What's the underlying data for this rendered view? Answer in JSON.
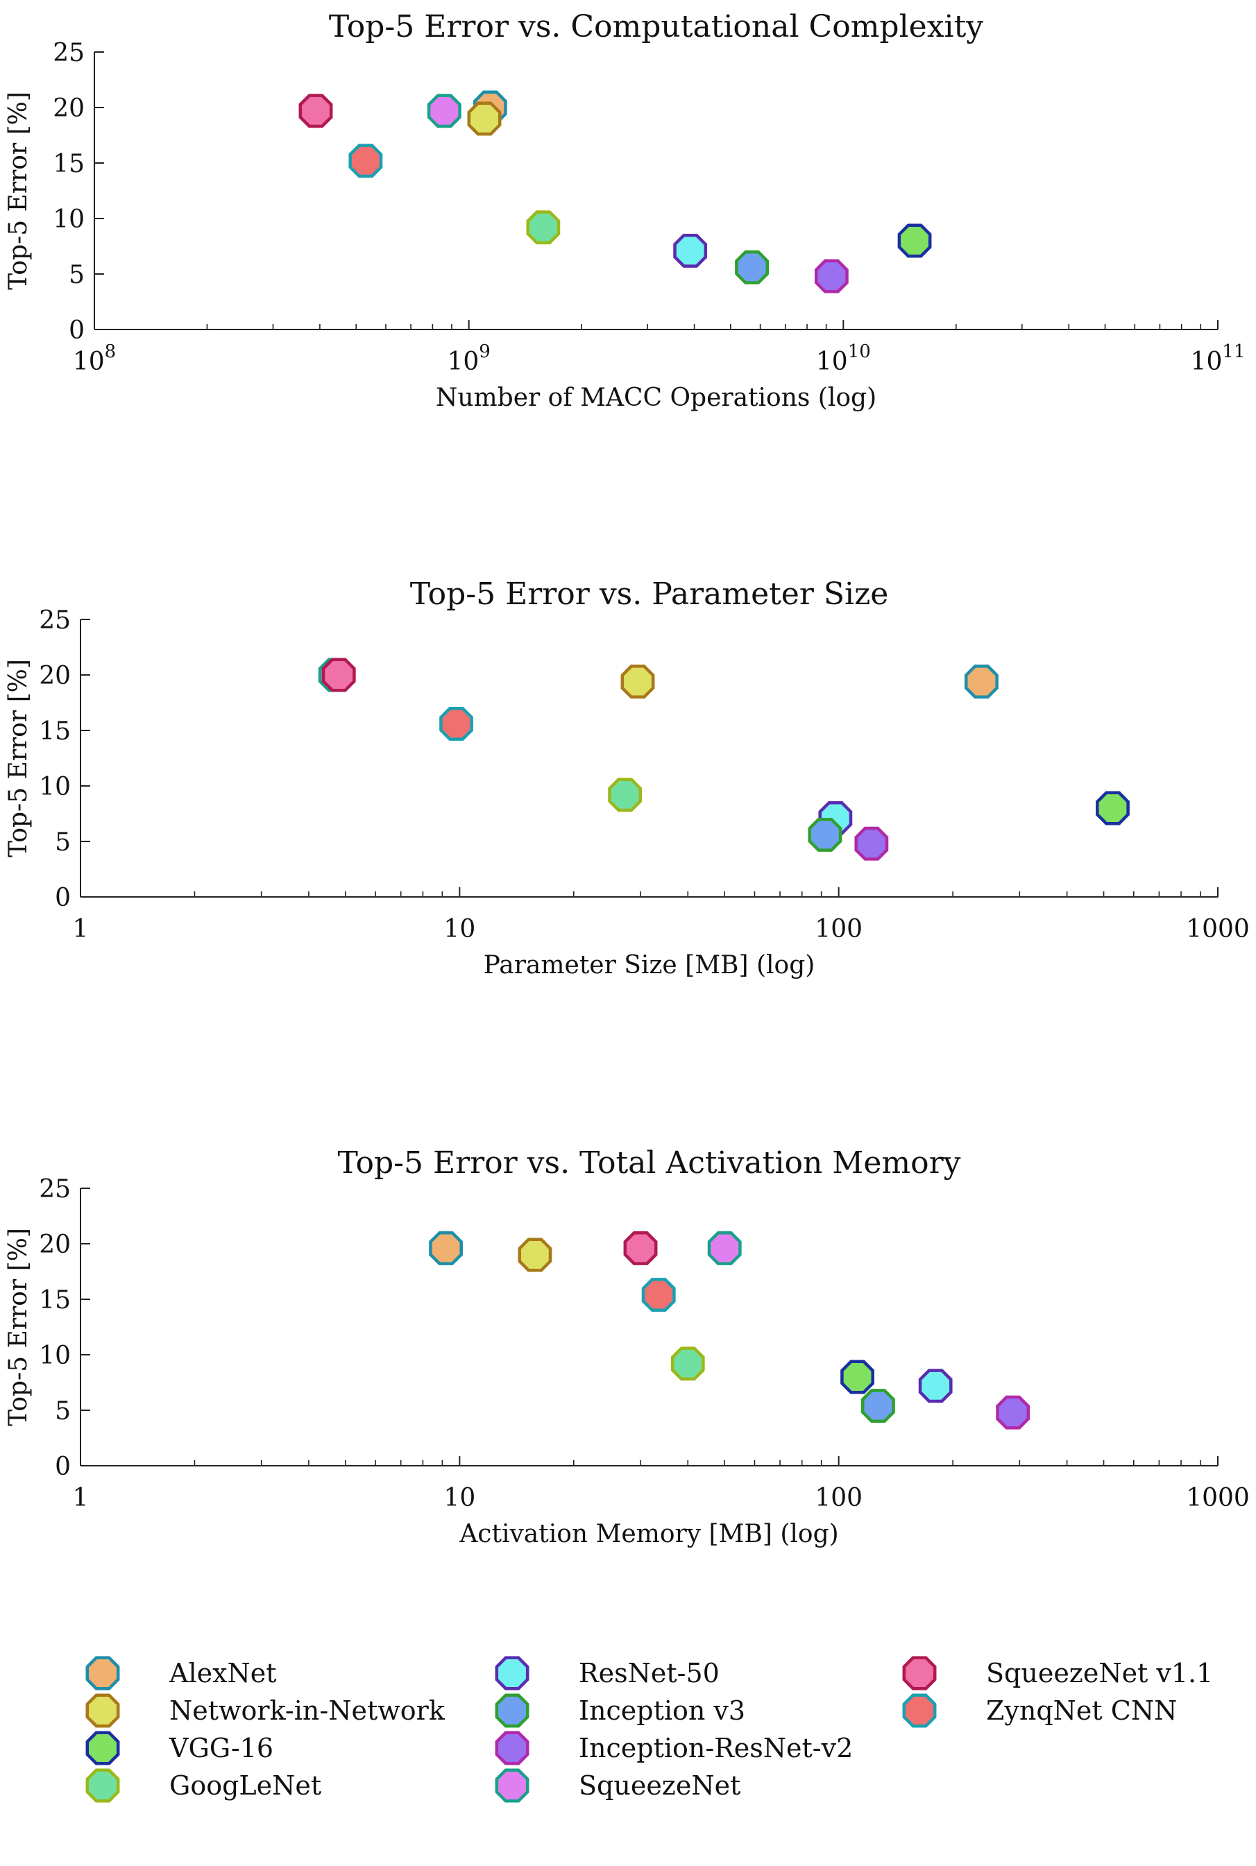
{
  "series_styles": [
    {
      "name": "AlexNet",
      "fill": "#f0b070",
      "stroke": "#1e8eaa"
    },
    {
      "name": "Network-in-Network",
      "fill": "#dde060",
      "stroke": "#a8781a"
    },
    {
      "name": "VGG-16",
      "fill": "#80e060",
      "stroke": "#1a2fa0"
    },
    {
      "name": "GoogLeNet",
      "fill": "#70e0a0",
      "stroke": "#9ab81a"
    },
    {
      "name": "ResNet-50",
      "fill": "#70f0f0",
      "stroke": "#5a2cb0"
    },
    {
      "name": "Inception v3",
      "fill": "#70a0f0",
      "stroke": "#2fa02f"
    },
    {
      "name": "Inception-ResNet-v2",
      "fill": "#9a70f0",
      "stroke": "#b02aa8"
    },
    {
      "name": "SqueezeNet",
      "fill": "#e080f0",
      "stroke": "#1aa08a"
    },
    {
      "name": "SqueezeNet v1.1",
      "fill": "#f070a8",
      "stroke": "#b01a50"
    },
    {
      "name": "ZynqNet CNN",
      "fill": "#f07070",
      "stroke": "#1aa0b0"
    }
  ],
  "legend": {
    "placement": "bottom",
    "columns": [
      [
        "AlexNet",
        "Network-in-Network",
        "VGG-16",
        "GoogLeNet"
      ],
      [
        "ResNet-50",
        "Inception v3",
        "Inception-ResNet-v2",
        "SqueezeNet"
      ],
      [
        "SqueezeNet v1.1",
        "ZynqNet CNN"
      ]
    ]
  },
  "chart_data": [
    {
      "type": "scatter",
      "title": "Top-5 Error vs. Computational Complexity",
      "xlabel": "Number of MACC Operations (log)",
      "ylabel": "Top-5 Error [%]",
      "xscale": "log",
      "xlim": [
        100000000,
        100000000000
      ],
      "ylim": [
        0,
        25
      ],
      "xticks": [
        {
          "value": 100000000,
          "base": "10",
          "exp": "8"
        },
        {
          "value": 1000000000,
          "base": "10",
          "exp": "9"
        },
        {
          "value": 10000000000,
          "base": "10",
          "exp": "10"
        },
        {
          "value": 100000000000,
          "base": "10",
          "exp": "11"
        }
      ],
      "yticks": [
        {
          "value": 0,
          "label": "0"
        },
        {
          "value": 5,
          "label": "5"
        },
        {
          "value": 10,
          "label": "10"
        },
        {
          "value": 15,
          "label": "15"
        },
        {
          "value": 20,
          "label": "20"
        },
        {
          "value": 25,
          "label": "25"
        }
      ],
      "grid": false,
      "points": [
        {
          "series": "AlexNet",
          "x": 1140000000,
          "y": 20.0
        },
        {
          "series": "SqueezeNet",
          "x": 860000000,
          "y": 19.7
        },
        {
          "series": "Network-in-Network",
          "x": 1100000000,
          "y": 19.0
        },
        {
          "series": "SqueezeNet v1.1",
          "x": 390000000,
          "y": 19.7
        },
        {
          "series": "ZynqNet CNN",
          "x": 530000000,
          "y": 15.2
        },
        {
          "series": "GoogLeNet",
          "x": 1580000000,
          "y": 9.2
        },
        {
          "series": "ResNet-50",
          "x": 3900000000,
          "y": 7.1
        },
        {
          "series": "Inception v3",
          "x": 5700000000,
          "y": 5.6
        },
        {
          "series": "Inception-ResNet-v2",
          "x": 9300000000,
          "y": 4.8
        },
        {
          "series": "VGG-16",
          "x": 15500000000,
          "y": 8.0
        }
      ]
    },
    {
      "type": "scatter",
      "title": "Top-5 Error vs. Parameter Size",
      "xlabel": "Parameter Size [MB] (log)",
      "ylabel": "Top-5 Error [%]",
      "xscale": "log",
      "xlim": [
        1,
        1000
      ],
      "ylim": [
        0,
        25
      ],
      "xticks": [
        {
          "value": 1,
          "label": "1"
        },
        {
          "value": 10,
          "label": "10"
        },
        {
          "value": 100,
          "label": "100"
        },
        {
          "value": 1000,
          "label": "1000"
        }
      ],
      "yticks": [
        {
          "value": 0,
          "label": "0"
        },
        {
          "value": 5,
          "label": "5"
        },
        {
          "value": 10,
          "label": "10"
        },
        {
          "value": 15,
          "label": "15"
        },
        {
          "value": 20,
          "label": "20"
        },
        {
          "value": 25,
          "label": "25"
        }
      ],
      "grid": false,
      "points": [
        {
          "series": "SqueezeNet",
          "x": 4.7,
          "y": 20.0
        },
        {
          "series": "SqueezeNet v1.1",
          "x": 4.8,
          "y": 20.0
        },
        {
          "series": "ZynqNet CNN",
          "x": 9.8,
          "y": 15.6
        },
        {
          "series": "Network-in-Network",
          "x": 29.5,
          "y": 19.4
        },
        {
          "series": "AlexNet",
          "x": 238,
          "y": 19.4
        },
        {
          "series": "GoogLeNet",
          "x": 27.3,
          "y": 9.2
        },
        {
          "series": "ResNet-50",
          "x": 98,
          "y": 7.1
        },
        {
          "series": "Inception v3",
          "x": 92,
          "y": 5.6
        },
        {
          "series": "Inception-ResNet-v2",
          "x": 122,
          "y": 4.8
        },
        {
          "series": "VGG-16",
          "x": 528,
          "y": 8.0
        }
      ]
    },
    {
      "type": "scatter",
      "title": "Top-5 Error vs. Total Activation Memory",
      "xlabel": "Activation Memory [MB] (log)",
      "ylabel": "Top-5 Error [%]",
      "xscale": "log",
      "xlim": [
        1,
        1000
      ],
      "ylim": [
        0,
        25
      ],
      "xticks": [
        {
          "value": 1,
          "label": "1"
        },
        {
          "value": 10,
          "label": "10"
        },
        {
          "value": 100,
          "label": "100"
        },
        {
          "value": 1000,
          "label": "1000"
        }
      ],
      "yticks": [
        {
          "value": 0,
          "label": "0"
        },
        {
          "value": 5,
          "label": "5"
        },
        {
          "value": 10,
          "label": "10"
        },
        {
          "value": 15,
          "label": "15"
        },
        {
          "value": 20,
          "label": "20"
        },
        {
          "value": 25,
          "label": "25"
        }
      ],
      "grid": false,
      "points": [
        {
          "series": "AlexNet",
          "x": 9.2,
          "y": 19.6
        },
        {
          "series": "Network-in-Network",
          "x": 15.8,
          "y": 19.0
        },
        {
          "series": "SqueezeNet v1.1",
          "x": 30,
          "y": 19.6
        },
        {
          "series": "SqueezeNet",
          "x": 50,
          "y": 19.6
        },
        {
          "series": "ZynqNet CNN",
          "x": 33.5,
          "y": 15.4
        },
        {
          "series": "GoogLeNet",
          "x": 40,
          "y": 9.2
        },
        {
          "series": "VGG-16",
          "x": 112,
          "y": 8.0
        },
        {
          "series": "Inception v3",
          "x": 127,
          "y": 5.4
        },
        {
          "series": "ResNet-50",
          "x": 180,
          "y": 7.2
        },
        {
          "series": "Inception-ResNet-v2",
          "x": 288,
          "y": 4.8
        }
      ]
    }
  ]
}
